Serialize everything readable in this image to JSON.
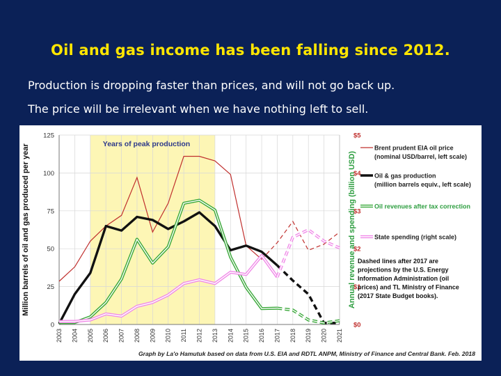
{
  "slide": {
    "title": "Oil and gas income has been falling since 2012.",
    "line1": "Production is dropping faster than prices, and will not go back up.",
    "line2": "The price will be irrelevant when we have nothing left to sell."
  },
  "chart_data": {
    "type": "line",
    "title": "",
    "x": [
      "2003",
      "2004",
      "2005",
      "2006",
      "2007",
      "2008",
      "2009",
      "2010",
      "2011",
      "2012",
      "2013",
      "2014",
      "2015",
      "2016",
      "2017",
      "2018",
      "2019",
      "2020",
      "2021"
    ],
    "ylabel_left": "Million barrels of oil and gas produced per year",
    "ylabel_right": "Annual revenue and spending (billion USD)",
    "ylim_left": [
      0,
      125
    ],
    "yticks_left": [
      "0",
      "25",
      "50",
      "75",
      "100",
      "125"
    ],
    "ylim_right": [
      0,
      5
    ],
    "yticks_right": [
      "$0",
      "$1",
      "$2",
      "$3",
      "$4",
      "$5"
    ],
    "highlight": {
      "label": "Years of peak production",
      "from": "2005",
      "to": "2013",
      "color": "#fdf6b5"
    },
    "series": [
      {
        "name": "Brent prudent EIA oil price",
        "name2": "(nominal USD/barrel, left scale)",
        "axis": "left",
        "color": "#c0302e",
        "style": "thin",
        "solid": [
          [
            2003,
            28.5
          ],
          [
            2004,
            38
          ],
          [
            2005,
            55
          ],
          [
            2006,
            65
          ],
          [
            2007,
            72
          ],
          [
            2008,
            97
          ],
          [
            2009,
            61
          ],
          [
            2010,
            80
          ],
          [
            2011,
            111
          ],
          [
            2012,
            111
          ],
          [
            2013,
            108
          ],
          [
            2014,
            99
          ],
          [
            2015,
            52
          ],
          [
            2016,
            43
          ]
        ],
        "dashed": [
          [
            2016,
            43
          ],
          [
            2017,
            54
          ],
          [
            2018,
            68
          ],
          [
            2019,
            49
          ],
          [
            2020,
            53
          ],
          [
            2021,
            61
          ]
        ]
      },
      {
        "name": "Oil & gas production",
        "name2": "(million barrels equiv., left scale)",
        "axis": "left",
        "color": "#111111",
        "style": "thick",
        "solid": [
          [
            2003,
            0.5
          ],
          [
            2004,
            20
          ],
          [
            2005,
            34
          ],
          [
            2006,
            65
          ],
          [
            2007,
            62
          ],
          [
            2008,
            71
          ],
          [
            2009,
            69
          ],
          [
            2010,
            63
          ],
          [
            2011,
            68
          ],
          [
            2012,
            74
          ],
          [
            2013,
            65
          ],
          [
            2014,
            49
          ],
          [
            2015,
            52
          ],
          [
            2016,
            48
          ],
          [
            2017,
            39
          ]
        ],
        "dashed": [
          [
            2017,
            39
          ],
          [
            2018,
            29
          ],
          [
            2019,
            20
          ],
          [
            2020,
            1
          ],
          [
            2021,
            1
          ]
        ]
      },
      {
        "name": "Oil revenues after tax correction",
        "name2": "",
        "axis": "right",
        "color": "#3aa83a",
        "style": "double",
        "solid": [
          [
            2003,
            0.05
          ],
          [
            2004,
            0.05
          ],
          [
            2005,
            0.2
          ],
          [
            2006,
            0.58
          ],
          [
            2007,
            1.2
          ],
          [
            2008,
            2.25
          ],
          [
            2009,
            1.62
          ],
          [
            2010,
            2.05
          ],
          [
            2011,
            3.2
          ],
          [
            2012,
            3.28
          ],
          [
            2013,
            3.02
          ],
          [
            2014,
            1.78
          ],
          [
            2015,
            0.98
          ],
          [
            2016,
            0.42
          ],
          [
            2017,
            0.43
          ]
        ],
        "dashed": [
          [
            2017,
            0.43
          ],
          [
            2018,
            0.38
          ],
          [
            2019,
            0.12
          ],
          [
            2020,
            0.04
          ],
          [
            2021,
            0.1
          ]
        ]
      },
      {
        "name": "State spending (right scale)",
        "name2": "",
        "axis": "right",
        "color": "#f08ae8",
        "style": "double",
        "solid": [
          [
            2003,
            0.08
          ],
          [
            2004,
            0.08
          ],
          [
            2005,
            0.12
          ],
          [
            2006,
            0.28
          ],
          [
            2007,
            0.22
          ],
          [
            2008,
            0.48
          ],
          [
            2009,
            0.58
          ],
          [
            2010,
            0.78
          ],
          [
            2011,
            1.08
          ],
          [
            2012,
            1.18
          ],
          [
            2013,
            1.08
          ],
          [
            2014,
            1.38
          ],
          [
            2015,
            1.32
          ],
          [
            2016,
            1.82
          ],
          [
            2017,
            1.25
          ]
        ],
        "dashed": [
          [
            2017,
            1.25
          ],
          [
            2018,
            2.3
          ],
          [
            2019,
            2.5
          ],
          [
            2020,
            2.2
          ],
          [
            2021,
            2.02
          ]
        ]
      }
    ],
    "note": [
      "Dashed lines after 2017 are",
      "projections by the U.S. Energy",
      "Information Administration (oil",
      "prices) and TL Ministry of Finance",
      "(2017 State Budget books)."
    ],
    "source": "Graph by La'o Hamutuk based on data from U.S. EIA and RDTL ANPM, Ministry of Finance and Central Bank. Feb. 2018"
  }
}
